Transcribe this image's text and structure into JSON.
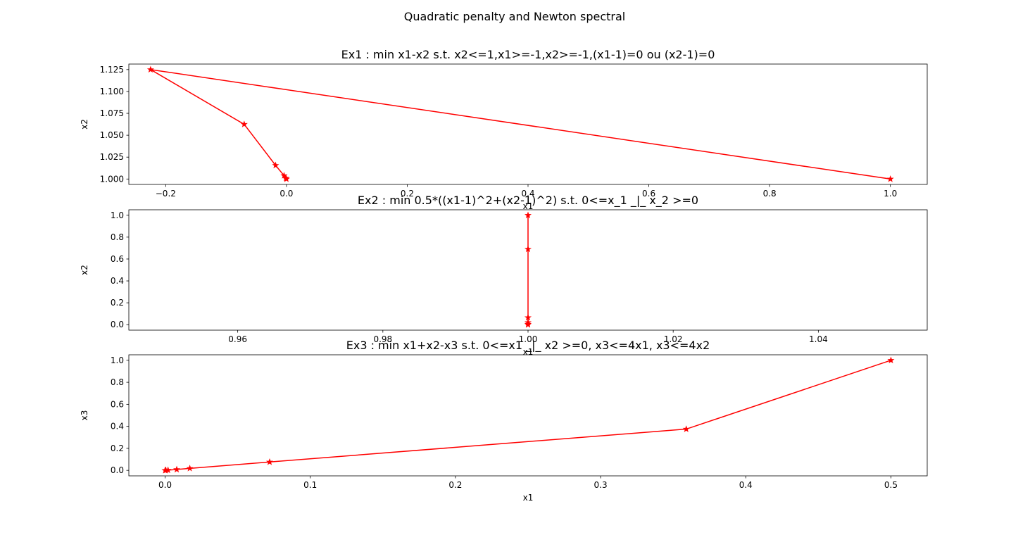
{
  "figure": {
    "suptitle": "Quadratic penalty and Newton spectral",
    "line_color": "#ff0000",
    "marker": "star"
  },
  "chart_data": [
    {
      "type": "line",
      "title": "Ex1 : min x1-x2 s.t. x2<=1,x1>=-1,x2>=-1,(x1-1)=0 ou (x2-1)=0",
      "xlabel": "x1",
      "ylabel": "x2",
      "xlim": [
        -0.261,
        1.061
      ],
      "ylim": [
        0.9938,
        1.1313
      ],
      "xticks": [
        -0.2,
        0.0,
        0.2,
        0.4,
        0.6,
        0.8,
        1.0
      ],
      "xtick_labels": [
        "−0.2",
        "0.0",
        "0.2",
        "0.4",
        "0.6",
        "0.8",
        "1.0"
      ],
      "yticks": [
        1.0,
        1.025,
        1.05,
        1.075,
        1.1,
        1.125
      ],
      "ytick_labels": [
        "1.000",
        "1.025",
        "1.050",
        "1.075",
        "1.100",
        "1.125"
      ],
      "grid": false,
      "series": [
        {
          "x": [
            1.0,
            -0.225,
            -0.07,
            -0.018,
            -0.004,
            -0.001,
            0.0
          ],
          "y": [
            1.0,
            1.125,
            1.0625,
            1.0156,
            1.0039,
            1.001,
            1.0
          ]
        }
      ]
    },
    {
      "type": "line",
      "title": "Ex2 : min 0.5*((x1-1)^2+(x2-1)^2) s.t. 0<=x_1 _|_ x_2 >=0",
      "xlabel": "x1",
      "ylabel": "x2",
      "xlim": [
        0.945,
        1.055
      ],
      "ylim": [
        -0.05,
        1.05
      ],
      "xticks": [
        0.96,
        0.98,
        1.0,
        1.02,
        1.04
      ],
      "xtick_labels": [
        "0.96",
        "0.98",
        "1.00",
        "1.02",
        "1.04"
      ],
      "yticks": [
        0.0,
        0.2,
        0.4,
        0.6,
        0.8,
        1.0
      ],
      "ytick_labels": [
        "0.0",
        "0.2",
        "0.4",
        "0.6",
        "0.8",
        "1.0"
      ],
      "grid": false,
      "series": [
        {
          "x": [
            1.0,
            1.0,
            1.0,
            1.0,
            1.0,
            1.0
          ],
          "y": [
            1.0,
            0.69,
            0.065,
            0.02,
            0.005,
            0.0
          ]
        }
      ]
    },
    {
      "type": "line",
      "title": "Ex3 : min x1+x2-x3 s.t. 0<=x1 _|_ x2 >=0, x3<=4x1, x3<=4x2",
      "xlabel": "x1",
      "ylabel": "x3",
      "xlim": [
        -0.025,
        0.525
      ],
      "ylim": [
        -0.05,
        1.05
      ],
      "xticks": [
        0.0,
        0.1,
        0.2,
        0.3,
        0.4,
        0.5
      ],
      "xtick_labels": [
        "0.0",
        "0.1",
        "0.2",
        "0.3",
        "0.4",
        "0.5"
      ],
      "yticks": [
        0.0,
        0.2,
        0.4,
        0.6,
        0.8,
        1.0
      ],
      "ytick_labels": [
        "0.0",
        "0.2",
        "0.4",
        "0.6",
        "0.8",
        "1.0"
      ],
      "grid": false,
      "series": [
        {
          "x": [
            0.5,
            0.359,
            0.072,
            0.017,
            0.008,
            0.002,
            0.0005,
            0.0
          ],
          "y": [
            1.0,
            0.375,
            0.076,
            0.018,
            0.008,
            0.002,
            0.0005,
            0.0
          ]
        }
      ]
    }
  ]
}
